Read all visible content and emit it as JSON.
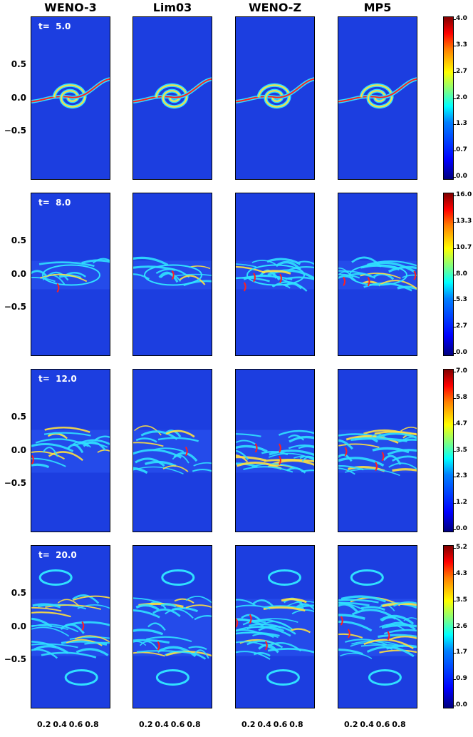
{
  "columns": [
    "WENO-3",
    "Lim03",
    "WENO-Z",
    "MP5"
  ],
  "rows": [
    {
      "time_label": "t=  5.0",
      "colorbar_ticks": [
        "4.0",
        "3.3",
        "2.7",
        "2.0",
        "1.3",
        "0.7",
        "0.0"
      ]
    },
    {
      "time_label": "t=  8.0",
      "colorbar_ticks": [
        "16.0",
        "13.3",
        "10.7",
        "8.0",
        "5.3",
        "2.7",
        "0.0"
      ]
    },
    {
      "time_label": "t=  12.0",
      "colorbar_ticks": [
        "7.0",
        "5.8",
        "4.7",
        "3.5",
        "2.3",
        "1.2",
        "0.0"
      ]
    },
    {
      "time_label": "t=  20.0",
      "colorbar_ticks": [
        "5.2",
        "4.3",
        "3.5",
        "2.6",
        "1.7",
        "0.9",
        "0.0"
      ]
    }
  ],
  "y_ticks": [
    "0.5",
    "0.0",
    "−0.5"
  ],
  "x_ticks": [
    "0.2",
    "0.4",
    "0.6",
    "0.8"
  ],
  "colors": {
    "background_blue": "#1c3ee0",
    "filament_cyan": "#30e0ff",
    "filament_yellow": "#ffe040",
    "filament_red": "#ff2020"
  }
}
